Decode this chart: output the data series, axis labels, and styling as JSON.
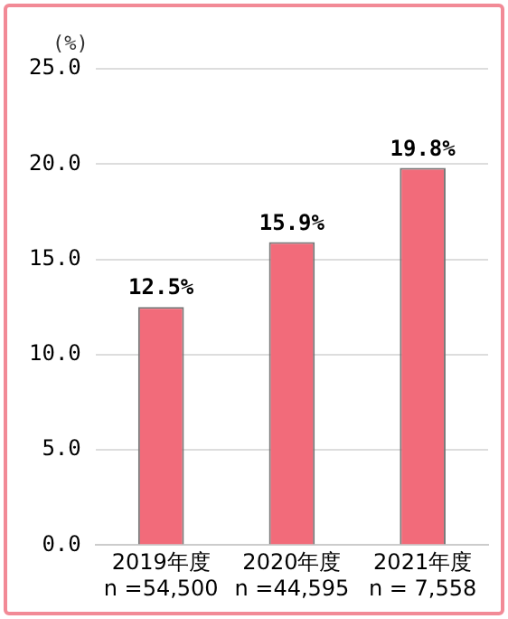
{
  "chart_data": {
    "type": "bar",
    "ylabel": "(%)",
    "categories": [
      "2019年度\nn =54,500",
      "2020年度\nn =44,595",
      "2021年度\nn = 7,558"
    ],
    "values": [
      12.5,
      15.9,
      19.8
    ],
    "color": "#f26b7a",
    "value_labels": [
      "12.5%",
      "15.9%",
      "19.8%"
    ],
    "ylim": [
      0,
      25
    ],
    "yticks": [
      {
        "value": 0,
        "label": "0.0"
      },
      {
        "value": 5,
        "label": "5.0"
      },
      {
        "value": 10,
        "label": "10.0"
      },
      {
        "value": 15,
        "label": "15.0"
      },
      {
        "value": 20,
        "label": "20.0"
      },
      {
        "value": 25,
        "label": "25.0"
      }
    ],
    "grid": "y"
  }
}
